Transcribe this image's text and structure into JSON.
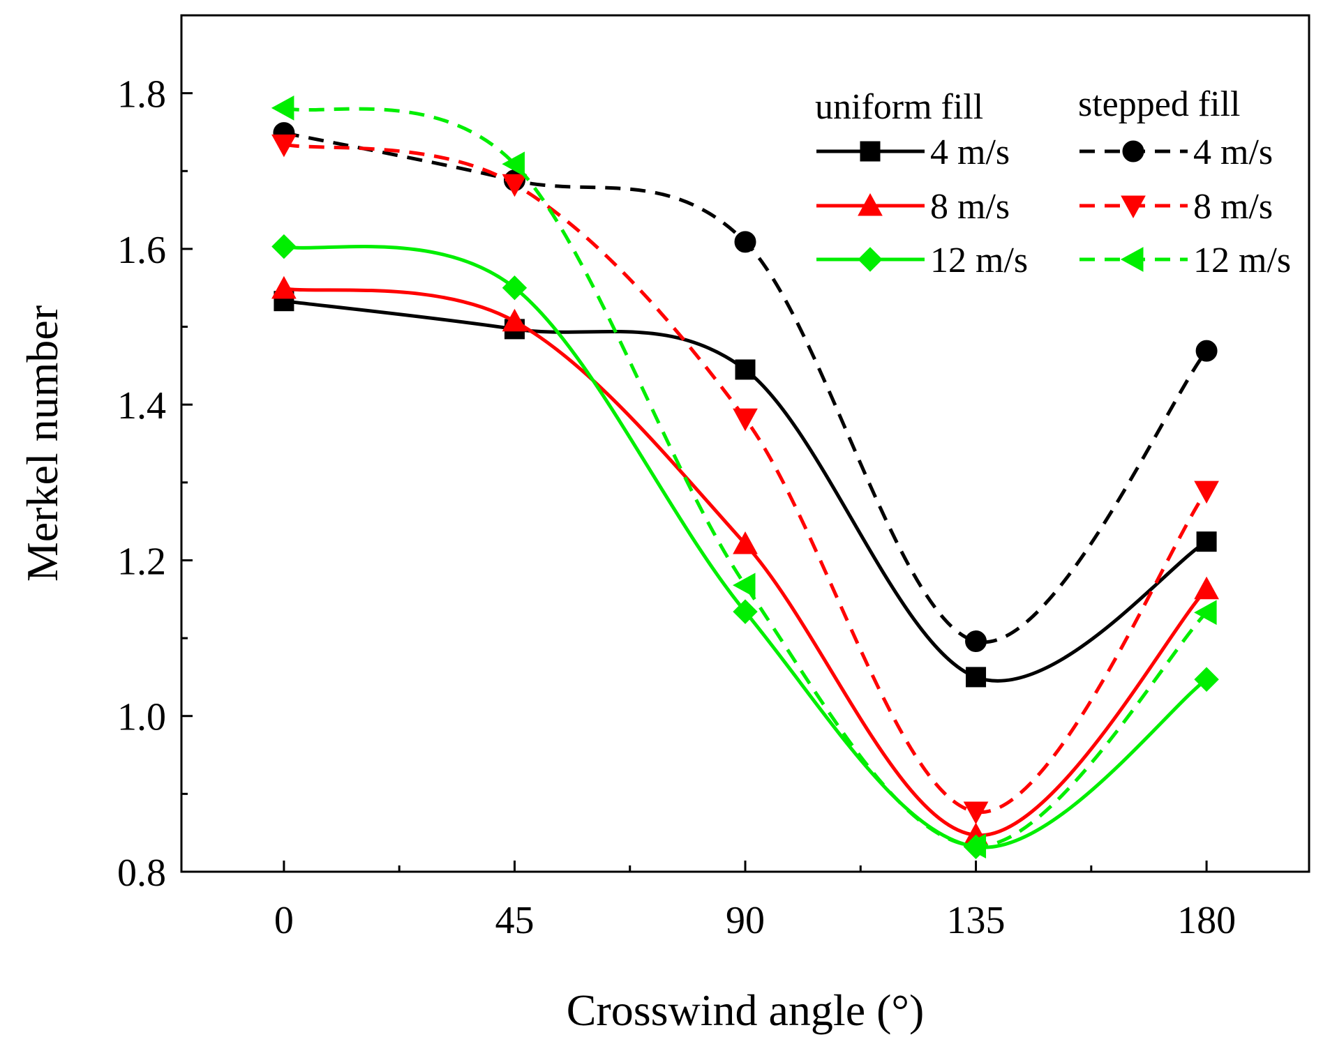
{
  "chart_data": {
    "type": "line",
    "xlabel": "Crosswind angle (°)",
    "ylabel": "Merkel number",
    "x": [
      0,
      45,
      90,
      135,
      180
    ],
    "xlim": [
      -20,
      200
    ],
    "ylim": [
      0.8,
      1.9
    ],
    "xticks": [
      0,
      45,
      90,
      135,
      180
    ],
    "xtick_labels": [
      "0",
      "45",
      "90",
      "135",
      "180"
    ],
    "yticks": [
      0.8,
      1.0,
      1.2,
      1.4,
      1.6,
      1.8
    ],
    "ytick_labels": [
      "0.8",
      "1.0",
      "1.2",
      "1.4",
      "1.6",
      "1.8"
    ],
    "grid": false,
    "legend": {
      "placement": "top-right",
      "group_titles": [
        "uniform fill",
        "stepped fill"
      ]
    },
    "series": [
      {
        "name": "4 m/s",
        "group": "uniform fill",
        "color": "#000000",
        "dash": "solid",
        "marker": "square",
        "values": [
          1.533,
          1.497,
          1.445,
          1.05,
          1.224
        ]
      },
      {
        "name": "8 m/s",
        "group": "uniform fill",
        "color": "#ff0000",
        "dash": "solid",
        "marker": "triangle-up",
        "values": [
          1.549,
          1.507,
          1.221,
          0.847,
          1.163
        ]
      },
      {
        "name": "12 m/s",
        "group": "uniform fill",
        "color": "#00ee00",
        "dash": "solid",
        "marker": "diamond",
        "values": [
          1.603,
          1.55,
          1.134,
          0.832,
          1.047
        ]
      },
      {
        "name": "4 m/s",
        "group": "stepped fill",
        "color": "#000000",
        "dash": "dashed",
        "marker": "circle",
        "values": [
          1.749,
          1.688,
          1.609,
          1.096,
          1.469
        ]
      },
      {
        "name": "8 m/s",
        "group": "stepped fill",
        "color": "#ff0000",
        "dash": "dashed",
        "marker": "triangle-down",
        "values": [
          1.734,
          1.683,
          1.382,
          0.877,
          1.289
        ]
      },
      {
        "name": "12 m/s",
        "group": "stepped fill",
        "color": "#00ee00",
        "dash": "dashed",
        "marker": "triangle-left",
        "values": [
          1.781,
          1.709,
          1.168,
          0.833,
          1.133
        ]
      }
    ]
  }
}
